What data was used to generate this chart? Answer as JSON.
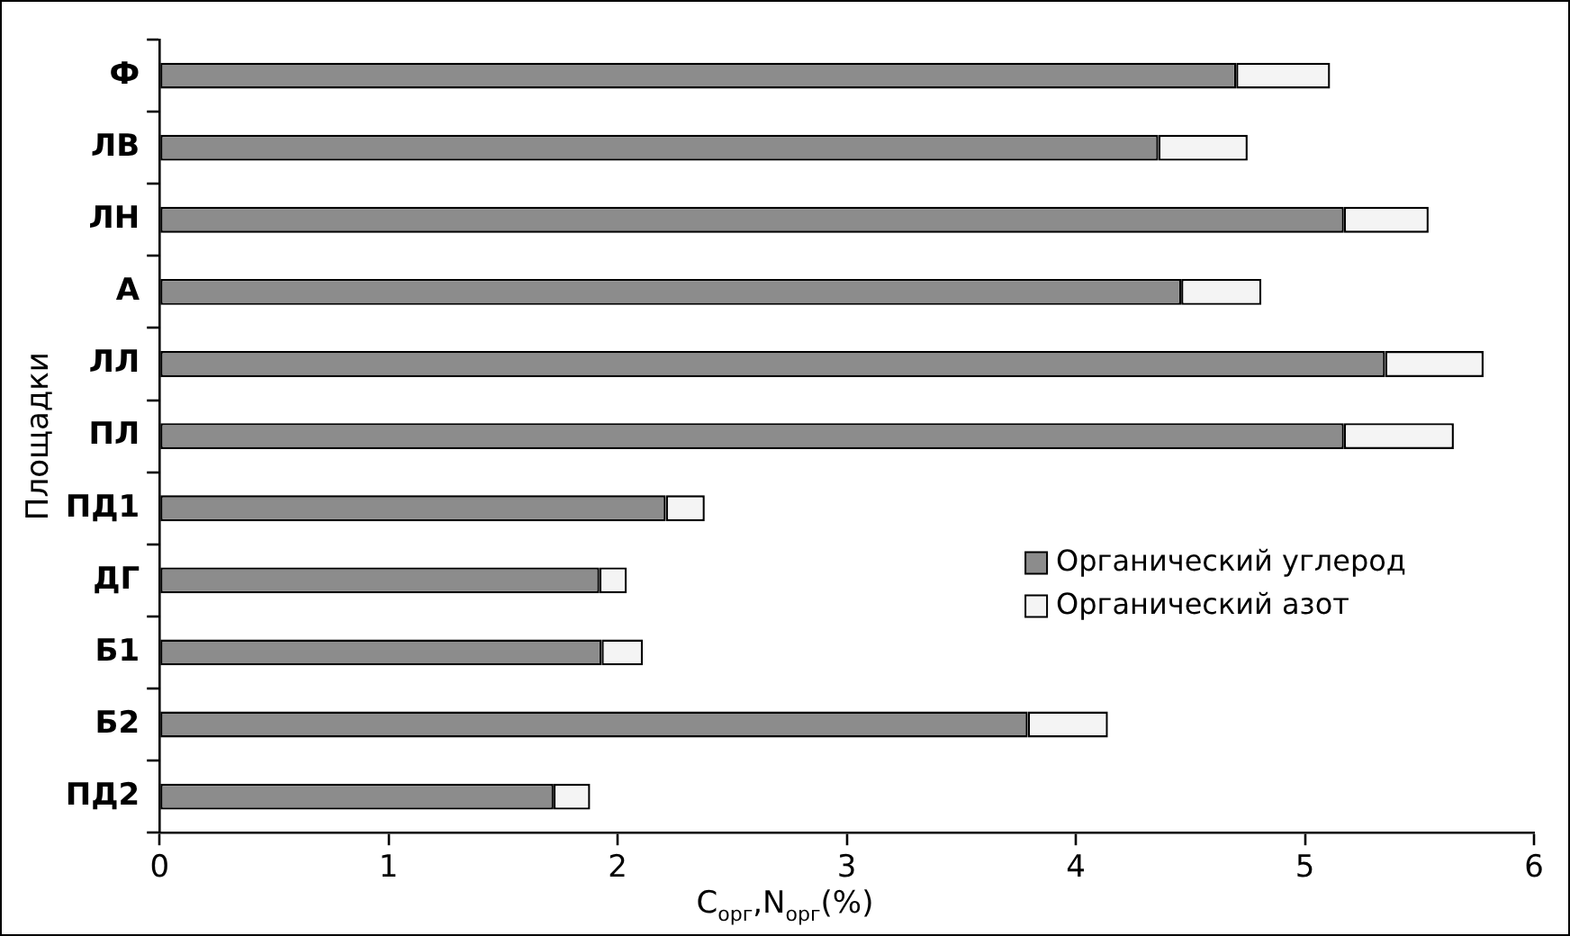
{
  "chart_data": {
    "type": "bar",
    "orientation": "horizontal",
    "stacked": true,
    "ylabel": "Площадки",
    "xlabel": "C$_{орг}$,N$_{орг}$(%)",
    "categories": [
      "Ф",
      "ЛВ",
      "ЛН",
      "А",
      "ЛЛ",
      "ПЛ",
      "ПД1",
      "ДГ",
      "Б1",
      "Б2",
      "ПД2"
    ],
    "series": [
      {
        "name": "Органический углерод",
        "color": "#8c8c8c",
        "values": [
          4.7,
          4.36,
          5.17,
          4.46,
          5.35,
          5.17,
          2.21,
          1.92,
          1.93,
          3.79,
          1.72
        ]
      },
      {
        "name": "Органический азот",
        "color": "#f4f4f4",
        "values": [
          0.41,
          0.39,
          0.37,
          0.35,
          0.43,
          0.48,
          0.17,
          0.12,
          0.18,
          0.35,
          0.16
        ]
      }
    ],
    "xlim": [
      0,
      6
    ],
    "xticks": [
      0,
      1,
      2,
      3,
      4,
      5,
      6
    ],
    "grid": false,
    "legend": "right"
  }
}
